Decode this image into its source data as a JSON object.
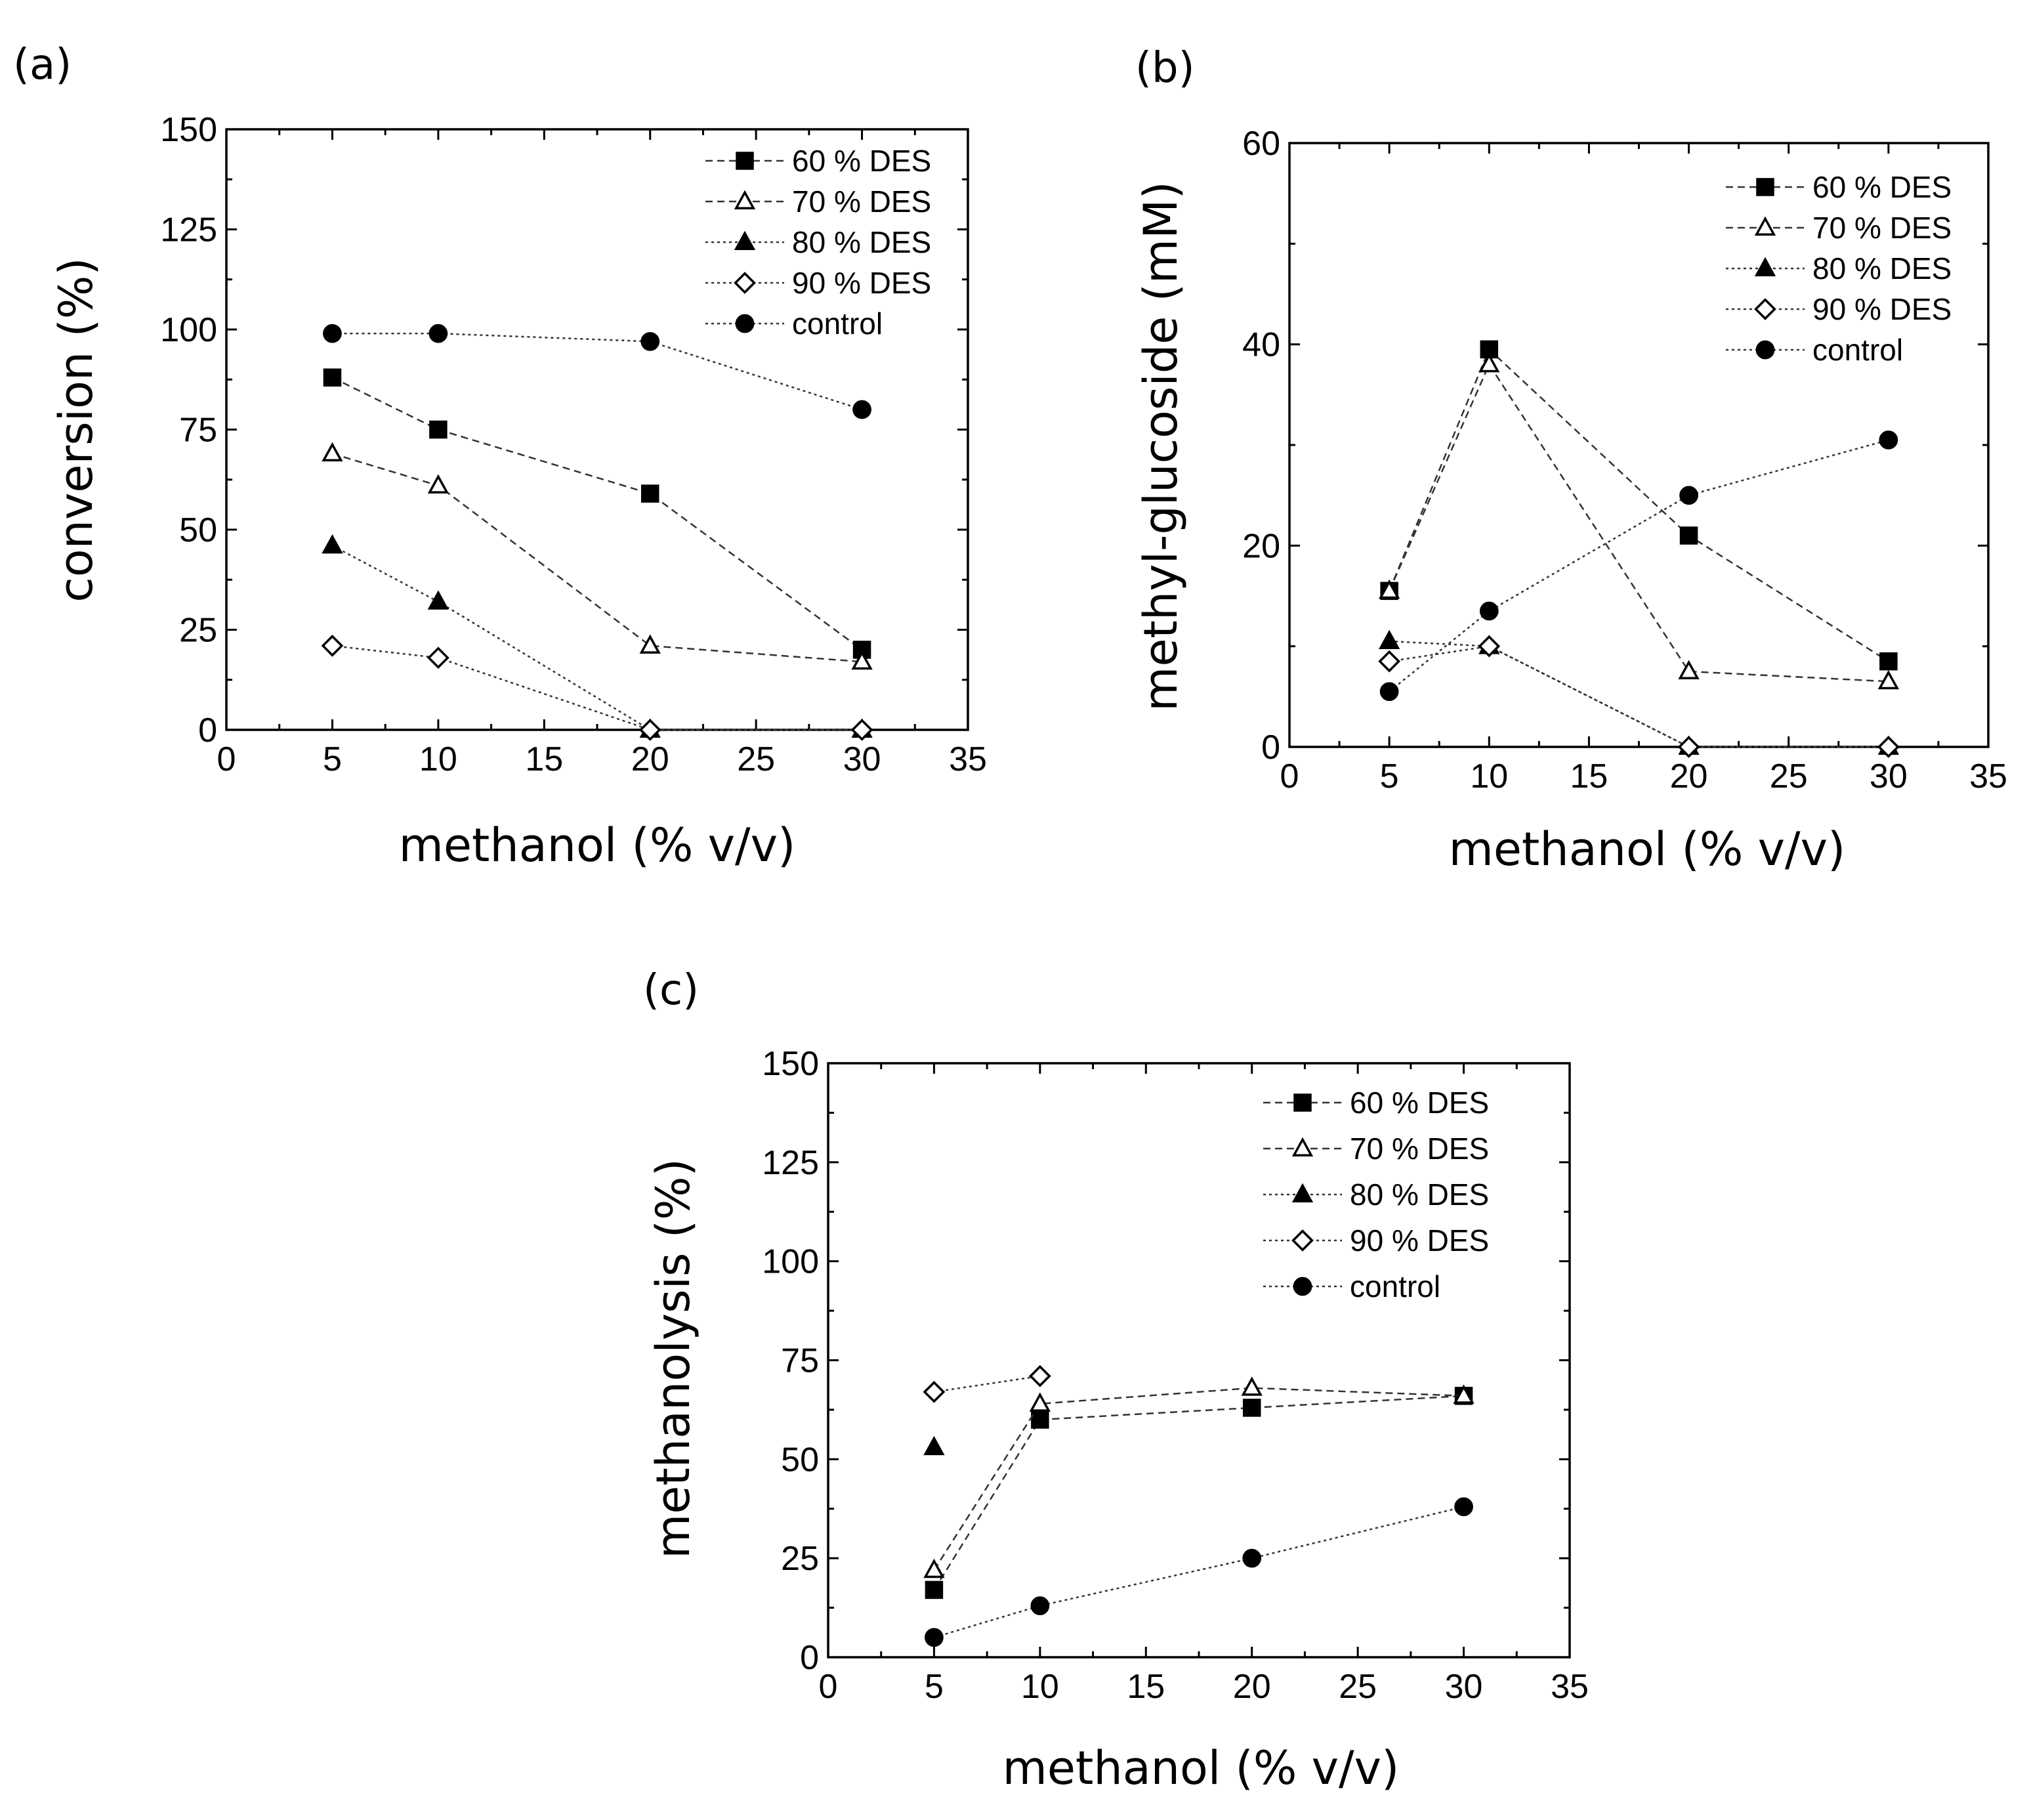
{
  "chart_data": [
    {
      "type": "line",
      "panel_label": "(a)",
      "title": "",
      "xlabel": "methanol (% v/v)",
      "ylabel": "conversion (%)",
      "xlim": [
        0,
        35
      ],
      "ylim": [
        0,
        150
      ],
      "x_ticks": [
        0,
        5,
        10,
        15,
        20,
        25,
        30,
        35
      ],
      "y_ticks": [
        0,
        25,
        50,
        75,
        100,
        125,
        150
      ],
      "legend_position": "top-right",
      "x": [
        5,
        10,
        20,
        30
      ],
      "series": [
        {
          "name": "60 % DES",
          "marker": "square-filled",
          "dash": "dashed",
          "values": [
            88,
            75,
            59,
            20
          ]
        },
        {
          "name": "70 % DES",
          "marker": "triangle-open",
          "dash": "dashed",
          "values": [
            69,
            61,
            21,
            17
          ]
        },
        {
          "name": "80 % DES",
          "marker": "triangle-filled",
          "dash": "dotted",
          "values": [
            46,
            32,
            0,
            0
          ]
        },
        {
          "name": "90 % DES",
          "marker": "diamond-open",
          "dash": "dotted",
          "values": [
            21,
            18,
            0,
            0
          ]
        },
        {
          "name": "control",
          "marker": "circle-filled",
          "dash": "dotted",
          "values": [
            99,
            99,
            97,
            80
          ]
        }
      ]
    },
    {
      "type": "line",
      "panel_label": "(b)",
      "title": "",
      "xlabel": "methanol (% v/v)",
      "ylabel": "methyl-glucoside (mM)",
      "xlim": [
        0,
        35
      ],
      "ylim": [
        0,
        60
      ],
      "x_ticks": [
        0,
        5,
        10,
        15,
        20,
        25,
        30,
        35
      ],
      "y_ticks": [
        0,
        20,
        40,
        60
      ],
      "legend_position": "top-right",
      "x": [
        5,
        10,
        20,
        30
      ],
      "series": [
        {
          "name": "60 % DES",
          "marker": "square-filled",
          "dash": "dashed",
          "values": [
            15.5,
            39.5,
            21,
            8.5
          ]
        },
        {
          "name": "70 % DES",
          "marker": "triangle-open",
          "dash": "dashed",
          "values": [
            15.5,
            38,
            7.5,
            6.5
          ]
        },
        {
          "name": "80 % DES",
          "marker": "triangle-filled",
          "dash": "dotted",
          "values": [
            10.5,
            10,
            0,
            0
          ]
        },
        {
          "name": "90 % DES",
          "marker": "diamond-open",
          "dash": "dotted",
          "values": [
            8.5,
            10,
            0,
            0
          ]
        },
        {
          "name": "control",
          "marker": "circle-filled",
          "dash": "dotted",
          "values": [
            5.5,
            13.5,
            25,
            30.5
          ]
        }
      ]
    },
    {
      "type": "line",
      "panel_label": "(c)",
      "title": "",
      "xlabel": "methanol (% v/v)",
      "ylabel": "methanolysis (%)",
      "xlim": [
        0,
        35
      ],
      "ylim": [
        0,
        150
      ],
      "x_ticks": [
        0,
        5,
        10,
        15,
        20,
        25,
        30,
        35
      ],
      "y_ticks": [
        0,
        25,
        50,
        75,
        100,
        125,
        150
      ],
      "legend_position": "top-right",
      "x": [
        5,
        10,
        20,
        30
      ],
      "series": [
        {
          "name": "60 % DES",
          "marker": "square-filled",
          "dash": "dashed",
          "values": [
            17,
            60,
            63,
            66
          ]
        },
        {
          "name": "70 % DES",
          "marker": "triangle-open",
          "dash": "dashed",
          "values": [
            22,
            64,
            68,
            66
          ]
        },
        {
          "name": "80 % DES",
          "marker": "triangle-filled",
          "dash": "dotted",
          "values": [
            53,
            null,
            null,
            null
          ]
        },
        {
          "name": "90 % DES",
          "marker": "diamond-open",
          "dash": "dotted",
          "values": [
            67,
            71,
            null,
            null
          ]
        },
        {
          "name": "control",
          "marker": "circle-filled",
          "dash": "dotted",
          "values": [
            5,
            13,
            25,
            38
          ]
        }
      ]
    }
  ]
}
